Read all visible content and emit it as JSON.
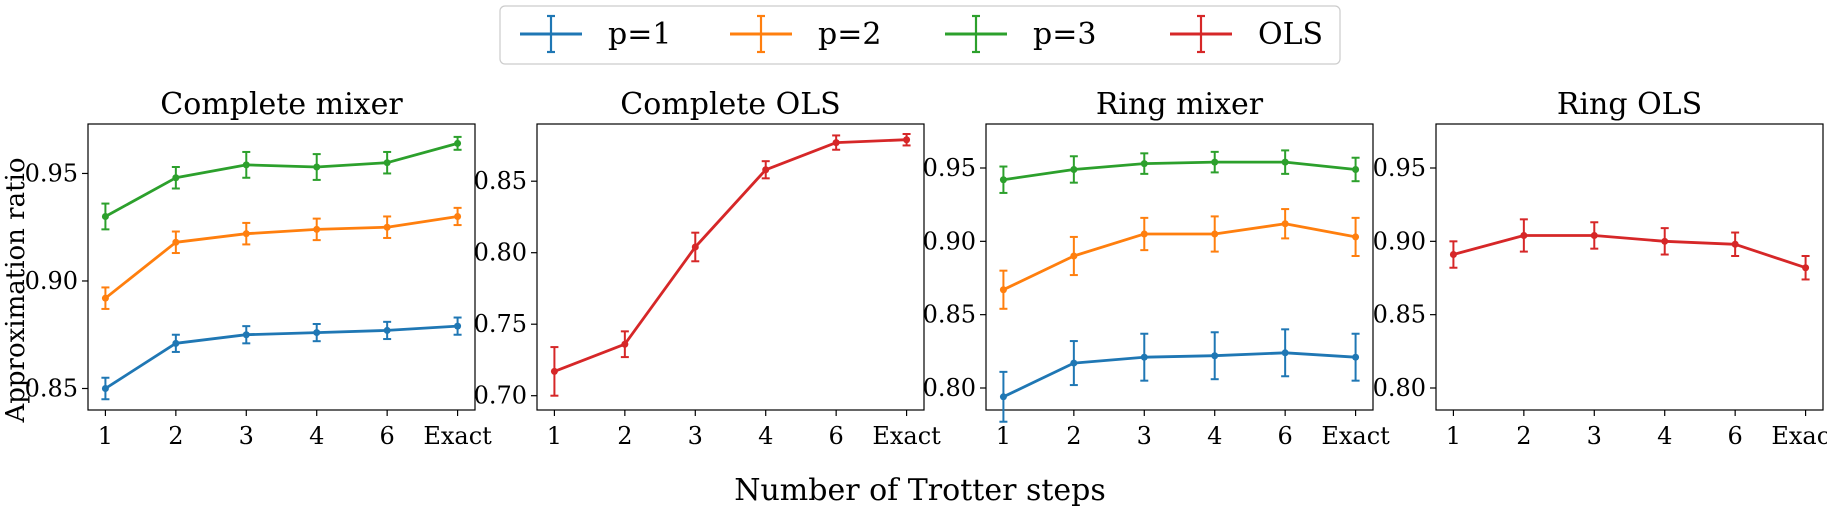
{
  "figure": {
    "xlabel": "Number of Trotter steps",
    "ylabel": "Approximation ratio"
  },
  "legend": [
    {
      "label": "p=1",
      "color": "#1f77b4"
    },
    {
      "label": "p=2",
      "color": "#ff7f0e"
    },
    {
      "label": "p=3",
      "color": "#2ca02c"
    },
    {
      "label": "OLS",
      "color": "#d62728"
    }
  ],
  "chart_data": [
    {
      "type": "line",
      "title": "Complete mixer",
      "categories": [
        "1",
        "2",
        "3",
        "4",
        "6",
        "Exact"
      ],
      "ylim": [
        0.84,
        0.973
      ],
      "yticks": [
        0.85,
        0.9,
        0.95
      ],
      "grid": false,
      "series": [
        {
          "name": "p=1",
          "color": "#1f77b4",
          "values": [
            0.85,
            0.871,
            0.875,
            0.876,
            0.877,
            0.879
          ],
          "errors": [
            0.005,
            0.004,
            0.004,
            0.004,
            0.004,
            0.004
          ]
        },
        {
          "name": "p=2",
          "color": "#ff7f0e",
          "values": [
            0.892,
            0.918,
            0.922,
            0.924,
            0.925,
            0.93
          ],
          "errors": [
            0.005,
            0.005,
            0.005,
            0.005,
            0.005,
            0.004
          ]
        },
        {
          "name": "p=3",
          "color": "#2ca02c",
          "values": [
            0.93,
            0.948,
            0.954,
            0.953,
            0.955,
            0.964
          ],
          "errors": [
            0.006,
            0.005,
            0.006,
            0.006,
            0.005,
            0.003
          ]
        }
      ]
    },
    {
      "type": "line",
      "title": "Complete OLS",
      "categories": [
        "1",
        "2",
        "3",
        "4",
        "6",
        "Exact"
      ],
      "ylim": [
        0.69,
        0.89
      ],
      "yticks": [
        0.7,
        0.75,
        0.8,
        0.85
      ],
      "grid": false,
      "series": [
        {
          "name": "OLS",
          "color": "#d62728",
          "values": [
            0.717,
            0.736,
            0.804,
            0.858,
            0.877,
            0.879
          ],
          "errors": [
            0.017,
            0.009,
            0.01,
            0.006,
            0.005,
            0.004
          ]
        }
      ]
    },
    {
      "type": "line",
      "title": "Ring mixer",
      "categories": [
        "1",
        "2",
        "3",
        "4",
        "6",
        "Exact"
      ],
      "ylim": [
        0.785,
        0.98
      ],
      "yticks": [
        0.8,
        0.85,
        0.9,
        0.95
      ],
      "grid": false,
      "series": [
        {
          "name": "p=1",
          "color": "#1f77b4",
          "values": [
            0.794,
            0.817,
            0.821,
            0.822,
            0.824,
            0.821
          ],
          "errors": [
            0.017,
            0.015,
            0.016,
            0.016,
            0.016,
            0.016
          ]
        },
        {
          "name": "p=2",
          "color": "#ff7f0e",
          "values": [
            0.867,
            0.89,
            0.905,
            0.905,
            0.912,
            0.903
          ],
          "errors": [
            0.013,
            0.013,
            0.011,
            0.012,
            0.01,
            0.013
          ]
        },
        {
          "name": "p=3",
          "color": "#2ca02c",
          "values": [
            0.942,
            0.949,
            0.953,
            0.954,
            0.954,
            0.949
          ],
          "errors": [
            0.009,
            0.009,
            0.007,
            0.007,
            0.008,
            0.008
          ]
        }
      ]
    },
    {
      "type": "line",
      "title": "Ring OLS",
      "categories": [
        "1",
        "2",
        "3",
        "4",
        "6",
        "Exact"
      ],
      "ylim": [
        0.785,
        0.98
      ],
      "yticks": [
        0.8,
        0.85,
        0.9,
        0.95
      ],
      "grid": false,
      "series": [
        {
          "name": "OLS",
          "color": "#d62728",
          "values": [
            0.891,
            0.904,
            0.904,
            0.9,
            0.898,
            0.882
          ],
          "errors": [
            0.009,
            0.011,
            0.009,
            0.009,
            0.008,
            0.008
          ]
        }
      ]
    }
  ]
}
